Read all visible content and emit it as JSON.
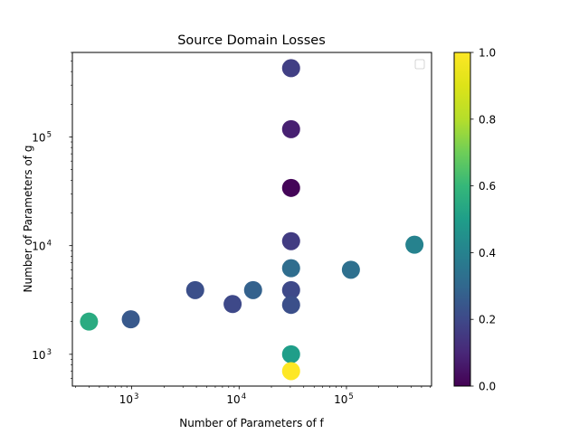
{
  "chart_data": {
    "type": "scatter",
    "title": "Source Domain Losses",
    "xlabel": "Number of Parameters of f",
    "ylabel": "Number of Parameters of g",
    "xscale": "log",
    "yscale": "log",
    "xlim": [
      280,
      620000
    ],
    "ylim": [
      510,
      600000
    ],
    "x_ticks": [
      {
        "value": 1000,
        "base": "10",
        "exp": "3"
      },
      {
        "value": 10000,
        "base": "10",
        "exp": "4"
      },
      {
        "value": 100000,
        "base": "10",
        "exp": "5"
      }
    ],
    "y_ticks": [
      {
        "value": 1000,
        "base": "10",
        "exp": "3"
      },
      {
        "value": 10000,
        "base": "10",
        "exp": "4"
      },
      {
        "value": 100000,
        "base": "10",
        "exp": "5"
      }
    ],
    "colorbar": {
      "colormap": "viridis",
      "range": [
        0,
        1
      ],
      "ticks": [
        "0.0",
        "0.2",
        "0.4",
        "0.6",
        "0.8",
        "1.0"
      ]
    },
    "legend": {
      "placement": "top-right",
      "entries": []
    },
    "grid": false,
    "points": [
      {
        "x": 400,
        "y": 2000,
        "c": 0.55
      },
      {
        "x": 980,
        "y": 2100,
        "c": 0.25
      },
      {
        "x": 3900,
        "y": 3900,
        "c": 0.22
      },
      {
        "x": 8700,
        "y": 2900,
        "c": 0.2
      },
      {
        "x": 13500,
        "y": 3900,
        "c": 0.28
      },
      {
        "x": 30500,
        "y": 430000,
        "c": 0.17
      },
      {
        "x": 30500,
        "y": 118000,
        "c": 0.08
      },
      {
        "x": 30500,
        "y": 34000,
        "c": 0.01
      },
      {
        "x": 30500,
        "y": 11000,
        "c": 0.16
      },
      {
        "x": 30500,
        "y": 6200,
        "c": 0.32
      },
      {
        "x": 30500,
        "y": 3900,
        "c": 0.2
      },
      {
        "x": 30500,
        "y": 2850,
        "c": 0.22
      },
      {
        "x": 30500,
        "y": 1000,
        "c": 0.5
      },
      {
        "x": 30500,
        "y": 700,
        "c": 1.0
      },
      {
        "x": 110000,
        "y": 6000,
        "c": 0.33
      },
      {
        "x": 430000,
        "y": 10200,
        "c": 0.4
      }
    ]
  }
}
